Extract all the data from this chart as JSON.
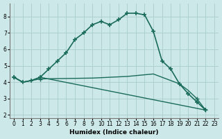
{
  "xlabel": "Humidex (Indice chaleur)",
  "bg_color": "#cce8e8",
  "grid_color": "#aacccc",
  "line_color": "#1a6b5a",
  "xlim": [
    -0.5,
    23.5
  ],
  "ylim": [
    1.8,
    8.8
  ],
  "yticks": [
    2,
    3,
    4,
    5,
    6,
    7,
    8
  ],
  "xticks": [
    0,
    1,
    2,
    3,
    4,
    5,
    6,
    7,
    8,
    9,
    10,
    11,
    12,
    13,
    14,
    15,
    16,
    17,
    18,
    19,
    20,
    21,
    22,
    23
  ],
  "line1_x": [
    0,
    1,
    2,
    3,
    4,
    5,
    6,
    7,
    8,
    9,
    10,
    11,
    12,
    13,
    14,
    15,
    16,
    17,
    18,
    19,
    20,
    21,
    22
  ],
  "line1_y": [
    4.3,
    4.0,
    4.1,
    4.3,
    4.8,
    5.3,
    5.8,
    6.6,
    7.0,
    7.5,
    7.7,
    7.5,
    7.8,
    8.2,
    8.2,
    8.1,
    7.1,
    5.3,
    4.8,
    3.9,
    3.3,
    2.8,
    2.3
  ],
  "line2_x": [
    0,
    1,
    2,
    3,
    22
  ],
  "line2_y": [
    4.3,
    4.0,
    4.1,
    4.3,
    2.3
  ],
  "line3_x": [
    0,
    1,
    2,
    3,
    9,
    13,
    16,
    19,
    20,
    21,
    22
  ],
  "line3_y": [
    4.3,
    4.0,
    4.1,
    4.2,
    4.25,
    4.35,
    4.5,
    3.9,
    3.5,
    3.0,
    2.3
  ]
}
